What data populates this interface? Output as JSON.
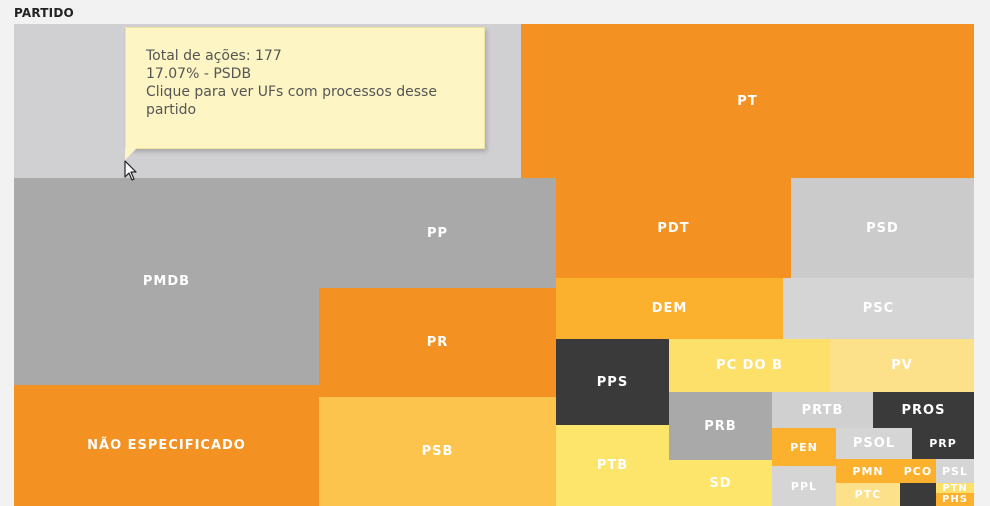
{
  "title": "PARTIDO",
  "chart_data": {
    "type": "treemap",
    "title": "PARTIDO",
    "items": [
      {
        "label": "PSDB",
        "value": 177,
        "color": "#d0d0d2",
        "text_color": "#ffffff",
        "show_label": false
      },
      {
        "label": "PT",
        "value": 155,
        "color": "#f39122",
        "text_color": "#ffffff"
      },
      {
        "label": "PMDB",
        "value": 123,
        "color": "#a9a9a9",
        "text_color": "#ffffff"
      },
      {
        "label": "NÃO ESPECIFICADO",
        "value": 65,
        "color": "#f39122",
        "text_color": "#ffffff"
      },
      {
        "label": "PP",
        "value": 88,
        "color": "#a9a9a9",
        "text_color": "#ffffff"
      },
      {
        "label": "PR",
        "value": 56,
        "color": "#f39122",
        "text_color": "#ffffff"
      },
      {
        "label": "PSB",
        "value": 50,
        "color": "#fdc44d",
        "text_color": "#ffffff"
      },
      {
        "label": "PDT",
        "value": 51,
        "color": "#f39122",
        "text_color": "#ffffff"
      },
      {
        "label": "PSD",
        "value": 40,
        "color": "#cbcbcb",
        "text_color": "#ffffff"
      },
      {
        "label": "DEM",
        "value": 28,
        "color": "#fbb02e",
        "text_color": "#ffffff"
      },
      {
        "label": "PSC",
        "value": 24,
        "color": "#d5d5d5",
        "text_color": "#ffffff"
      },
      {
        "label": "PPS",
        "value": 19,
        "color": "#3a3a3a",
        "text_color": "#ffffff"
      },
      {
        "label": "PC DO B",
        "value": 20,
        "color": "#fde06a",
        "text_color": "#ffffff"
      },
      {
        "label": "PV",
        "value": 17,
        "color": "#fde18a",
        "text_color": "#ffffff"
      },
      {
        "label": "PTB",
        "value": 15,
        "color": "#fde46a",
        "text_color": "#ffffff"
      },
      {
        "label": "PRB",
        "value": 11,
        "color": "#a9a9a9",
        "text_color": "#ffffff"
      },
      {
        "label": "SD",
        "value": 11,
        "color": "#fde46a",
        "text_color": "#ffffff"
      },
      {
        "label": "PRTB",
        "value": 8,
        "color": "#d0d0d0",
        "text_color": "#ffffff"
      },
      {
        "label": "PROS",
        "value": 9,
        "color": "#3a3a3a",
        "text_color": "#ffffff"
      },
      {
        "label": "PEN",
        "value": 5,
        "color": "#fbb02e",
        "text_color": "#ffffff"
      },
      {
        "label": "PSOL",
        "value": 5,
        "color": "#d5d5d5",
        "text_color": "#ffffff"
      },
      {
        "label": "PRP",
        "value": 5,
        "color": "#3a3a3a",
        "text_color": "#ffffff"
      },
      {
        "label": "PPL",
        "value": 4,
        "color": "#d5d5d5",
        "text_color": "#ffffff"
      },
      {
        "label": "PMN",
        "value": 3,
        "color": "#fbb02e",
        "text_color": "#ffffff"
      },
      {
        "label": "PTC",
        "value": 3,
        "color": "#fde18a",
        "text_color": "#ffffff"
      },
      {
        "label": "PCO",
        "value": 1,
        "color": "#fbb02e",
        "text_color": "#ffffff"
      },
      {
        "label": "PSL",
        "value": 2,
        "color": "#d5d5d5",
        "text_color": "#ffffff"
      },
      {
        "label": "PTN",
        "value": 1,
        "color": "#fde06a",
        "text_color": "#ffffff"
      },
      {
        "label": "PHS",
        "value": 1,
        "color": "#fbb02e",
        "text_color": "#ffffff"
      },
      {
        "label": "",
        "value": 1,
        "color": "#3a3a3a",
        "text_color": "#ffffff",
        "show_label": false
      }
    ]
  },
  "tooltip": {
    "line1": "Total de ações: 177",
    "line2": "17.07% - PSDB",
    "line3": "Clique para ver UFs com processos desse",
    "line4": "partido"
  }
}
